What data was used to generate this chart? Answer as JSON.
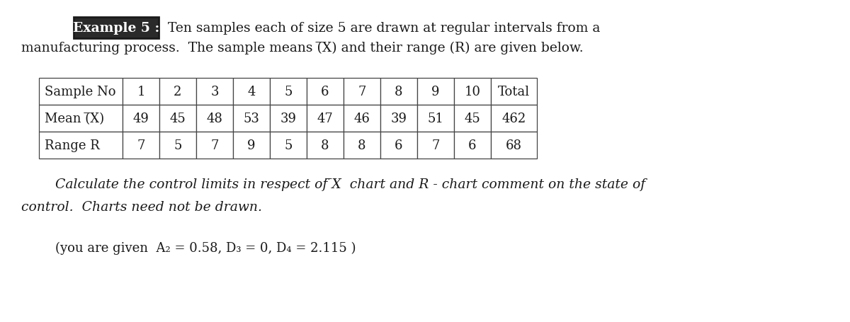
{
  "title_box_text": "Example 5 :",
  "intro_line1": "Ten samples each of size 5 are drawn at regular intervals from a",
  "intro_line2": "manufacturing process.  The sample means (̅X) and their range (R) are given below.",
  "table_headers": [
    "Sample No",
    "1",
    "2",
    "3",
    "4",
    "5",
    "6",
    "7",
    "8",
    "9",
    "10",
    "Total"
  ],
  "row_mean_label": "Mean (̅X)",
  "row_mean_values": [
    "49",
    "45",
    "48",
    "53",
    "39",
    "47",
    "46",
    "39",
    "51",
    "45",
    "462"
  ],
  "row_range_label": "Range R",
  "row_range_values": [
    "7",
    "5",
    "7",
    "9",
    "5",
    "8",
    "8",
    "6",
    "7",
    "6",
    "68"
  ],
  "calc_line1": "Calculate the control limits in respect of ̅X  chart and R - chart comment on the state of",
  "calc_line2": "control.  Charts need not be drawn.",
  "given_line": "(you are given  A₂ = 0.58, D₃ = 0, D₄ = 2.115 )",
  "bg_color": "#ffffff",
  "table_bg": "#ffffff",
  "box_bg": "#2a2a2a",
  "box_text_color": "#ffffff",
  "text_color": "#1a1a1a",
  "font_family": "serif",
  "title_fontsize": 13.5,
  "body_fontsize": 13.5,
  "table_fontsize": 13,
  "given_fontsize": 13
}
